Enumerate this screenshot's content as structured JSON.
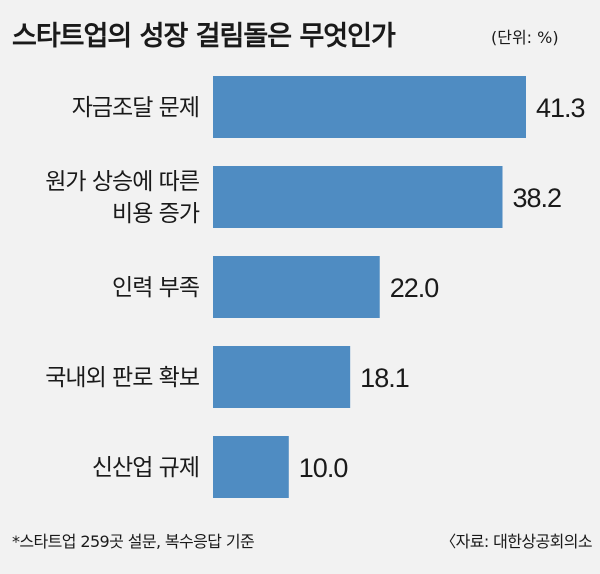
{
  "title": "스타트업의 성장 걸림돌은 무엇인가",
  "unit": "(단위: %)",
  "footnote": "*스타트업 259곳 설문, 복수응답 기준",
  "source": "〈자료: 대한상공회의소",
  "colors": {
    "bar": "#4f8cc2",
    "background": "#f2f2f2",
    "text": "#1a1a1a"
  },
  "chart_data": {
    "type": "bar",
    "orientation": "horizontal",
    "categories": [
      [
        "자금조달 문제"
      ],
      [
        "원가 상승에 따른",
        "비용 증가"
      ],
      [
        "인력 부족"
      ],
      [
        "국내외 판로 확보"
      ],
      [
        "신산업 규제"
      ]
    ],
    "values": [
      41.3,
      38.2,
      22.0,
      18.1,
      10.0
    ],
    "value_labels": [
      "41.3",
      "38.2",
      "22.0",
      "18.1",
      "10.0"
    ],
    "xlim": [
      0,
      41.3
    ]
  }
}
